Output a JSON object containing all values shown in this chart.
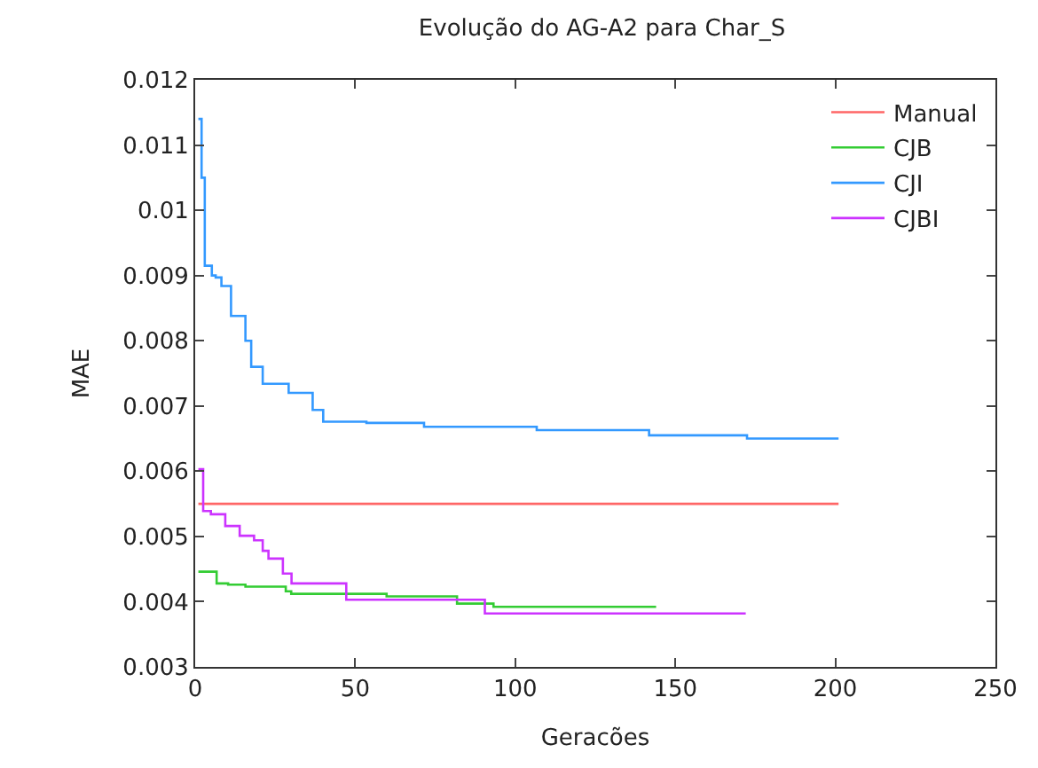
{
  "chart_data": {
    "type": "step",
    "title": "Evolução do AG-A2 para Char_S",
    "xlabel": "Geracões",
    "ylabel": "MAE",
    "xlim": [
      0,
      250
    ],
    "xticks": [
      0,
      50,
      100,
      150,
      200,
      250
    ],
    "ylim": [
      0.003,
      0.012
    ],
    "yticks": [
      0.003,
      0.004,
      0.005,
      0.006,
      0.007,
      0.008,
      0.009,
      0.01,
      0.011,
      0.012
    ],
    "legend": "top right",
    "series": [
      {
        "name": "Manual",
        "color": "#ff6666",
        "x": [
          1,
          201
        ],
        "values": [
          0.0055,
          0.0055
        ]
      },
      {
        "name": "CJB",
        "color": "#33cc33",
        "x": [
          1,
          6.7,
          10.3,
          15.7,
          28.3,
          30,
          59.8,
          81.8,
          93.2,
          144
        ],
        "values": [
          0.00446,
          0.00428,
          0.00426,
          0.00423,
          0.00416,
          0.00412,
          0.00408,
          0.00397,
          0.00392,
          0.00392
        ]
      },
      {
        "name": "CJI",
        "color": "#3399ff",
        "x": [
          1,
          2,
          3,
          5.2,
          6.4,
          8.2,
          11.2,
          15.7,
          17.5,
          21.1,
          29.2,
          36.7,
          40,
          53.5,
          71.5,
          106.7,
          141.8,
          172.4,
          201
        ],
        "values": [
          0.0114,
          0.0105,
          0.00915,
          0.009,
          0.00897,
          0.00884,
          0.00838,
          0.008,
          0.0076,
          0.00734,
          0.0072,
          0.00694,
          0.00676,
          0.00674,
          0.00668,
          0.00663,
          0.00655,
          0.0065,
          0.0065
        ]
      },
      {
        "name": "CJBI",
        "color": "#cc33ff",
        "x": [
          1,
          2.5,
          4.9,
          9.4,
          13.9,
          18.4,
          21.1,
          22.9,
          27.4,
          30.1,
          47.2,
          90.5,
          172
        ],
        "values": [
          0.00603,
          0.00539,
          0.00534,
          0.00516,
          0.00501,
          0.00494,
          0.00478,
          0.00466,
          0.00443,
          0.00428,
          0.00403,
          0.00382,
          0.00382
        ]
      }
    ]
  }
}
